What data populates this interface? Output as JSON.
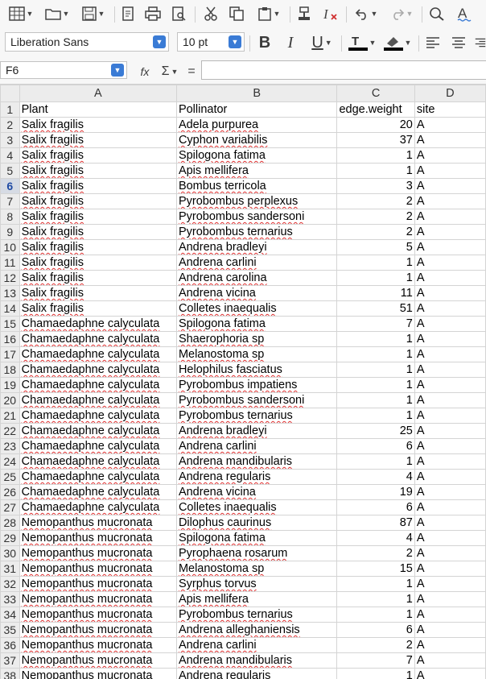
{
  "toolbar": {
    "font_name": "Liberation Sans",
    "font_size": "10 pt",
    "bold_label": "B",
    "italic_label": "I",
    "underline_label": "U"
  },
  "formula_bar": {
    "cell_ref": "F6",
    "function_label": "fx",
    "sum_label": "Σ",
    "equals_label": "=",
    "content": ""
  },
  "grid": {
    "columns": [
      "A",
      "B",
      "C",
      "D"
    ],
    "selected_row": 6,
    "rows": [
      {
        "n": "1",
        "a": "Plant",
        "b": "Pollinator",
        "c": "edge.weight",
        "d": "site",
        "header": true
      },
      {
        "n": "2",
        "a": "Salix fragilis",
        "b": "Adela purpurea",
        "c": "20",
        "d": "A"
      },
      {
        "n": "3",
        "a": "Salix fragilis",
        "b": "Cyphon variabilis",
        "c": "37",
        "d": "A"
      },
      {
        "n": "4",
        "a": "Salix fragilis",
        "b": "Spilogona fatima",
        "c": "1",
        "d": "A"
      },
      {
        "n": "5",
        "a": "Salix fragilis",
        "b": "Apis mellifera",
        "c": "1",
        "d": "A"
      },
      {
        "n": "6",
        "a": "Salix fragilis",
        "b": "Bombus terricola",
        "c": "3",
        "d": "A"
      },
      {
        "n": "7",
        "a": "Salix fragilis",
        "b": "Pyrobombus perplexus",
        "c": "2",
        "d": "A"
      },
      {
        "n": "8",
        "a": "Salix fragilis",
        "b": "Pyrobombus sandersoni",
        "c": "2",
        "d": "A"
      },
      {
        "n": "9",
        "a": "Salix fragilis",
        "b": "Pyrobombus ternarius",
        "c": "2",
        "d": "A"
      },
      {
        "n": "10",
        "a": "Salix fragilis",
        "b": "Andrena bradleyi",
        "c": "5",
        "d": "A"
      },
      {
        "n": "11",
        "a": "Salix fragilis",
        "b": "Andrena carlini",
        "c": "1",
        "d": "A"
      },
      {
        "n": "12",
        "a": "Salix fragilis",
        "b": "Andrena carolina",
        "c": "1",
        "d": "A"
      },
      {
        "n": "13",
        "a": "Salix fragilis",
        "b": "Andrena vicina",
        "c": "11",
        "d": "A"
      },
      {
        "n": "14",
        "a": "Salix fragilis",
        "b": "Colletes inaequalis",
        "c": "51",
        "d": "A"
      },
      {
        "n": "15",
        "a": "Chamaedaphne calyculata",
        "b": "Spilogona fatima",
        "c": "7",
        "d": "A"
      },
      {
        "n": "16",
        "a": "Chamaedaphne calyculata",
        "b": "Shaerophoria sp",
        "c": "1",
        "d": "A"
      },
      {
        "n": "17",
        "a": "Chamaedaphne calyculata",
        "b": "Melanostoma sp",
        "c": "1",
        "d": "A"
      },
      {
        "n": "18",
        "a": "Chamaedaphne calyculata",
        "b": "Helophilus fasciatus",
        "c": "1",
        "d": "A"
      },
      {
        "n": "19",
        "a": "Chamaedaphne calyculata",
        "b": "Pyrobombus impatiens",
        "c": "1",
        "d": "A"
      },
      {
        "n": "20",
        "a": "Chamaedaphne calyculata",
        "b": "Pyrobombus sandersoni",
        "c": "1",
        "d": "A"
      },
      {
        "n": "21",
        "a": "Chamaedaphne calyculata",
        "b": "Pyrobombus ternarius",
        "c": "1",
        "d": "A"
      },
      {
        "n": "22",
        "a": "Chamaedaphne calyculata",
        "b": "Andrena bradleyi",
        "c": "25",
        "d": "A"
      },
      {
        "n": "23",
        "a": "Chamaedaphne calyculata",
        "b": "Andrena carlini",
        "c": "6",
        "d": "A"
      },
      {
        "n": "24",
        "a": "Chamaedaphne calyculata",
        "b": "Andrena mandibularis",
        "c": "1",
        "d": "A"
      },
      {
        "n": "25",
        "a": "Chamaedaphne calyculata",
        "b": "Andrena regularis",
        "c": "4",
        "d": "A"
      },
      {
        "n": "26",
        "a": "Chamaedaphne calyculata",
        "b": "Andrena vicina",
        "c": "19",
        "d": "A"
      },
      {
        "n": "27",
        "a": "Chamaedaphne calyculata",
        "b": "Colletes inaequalis",
        "c": "6",
        "d": "A"
      },
      {
        "n": "28",
        "a": "Nemopanthus mucronata",
        "b": "Dilophus caurinus",
        "c": "87",
        "d": "A"
      },
      {
        "n": "29",
        "a": "Nemopanthus mucronata",
        "b": "Spilogona fatima",
        "c": "4",
        "d": "A"
      },
      {
        "n": "30",
        "a": "Nemopanthus mucronata",
        "b": "Pyrophaena rosarum",
        "c": "2",
        "d": "A"
      },
      {
        "n": "31",
        "a": "Nemopanthus mucronata",
        "b": "Melanostoma sp",
        "c": "15",
        "d": "A"
      },
      {
        "n": "32",
        "a": "Nemopanthus mucronata",
        "b": "Syrphus torvus",
        "c": "1",
        "d": "A"
      },
      {
        "n": "33",
        "a": "Nemopanthus mucronata",
        "b": "Apis mellifera",
        "c": "1",
        "d": "A"
      },
      {
        "n": "34",
        "a": "Nemopanthus mucronata",
        "b": "Pyrobombus ternarius",
        "c": "1",
        "d": "A"
      },
      {
        "n": "35",
        "a": "Nemopanthus mucronata",
        "b": "Andrena alleghaniensis",
        "c": "6",
        "d": "A"
      },
      {
        "n": "36",
        "a": "Nemopanthus mucronata",
        "b": "Andrena carlini",
        "c": "2",
        "d": "A"
      },
      {
        "n": "37",
        "a": "Nemopanthus mucronata",
        "b": "Andrena mandibularis",
        "c": "7",
        "d": "A"
      },
      {
        "n": "38",
        "a": "Nemopanthus mucronata",
        "b": "Andrena regularis",
        "c": "1",
        "d": "A"
      }
    ]
  }
}
